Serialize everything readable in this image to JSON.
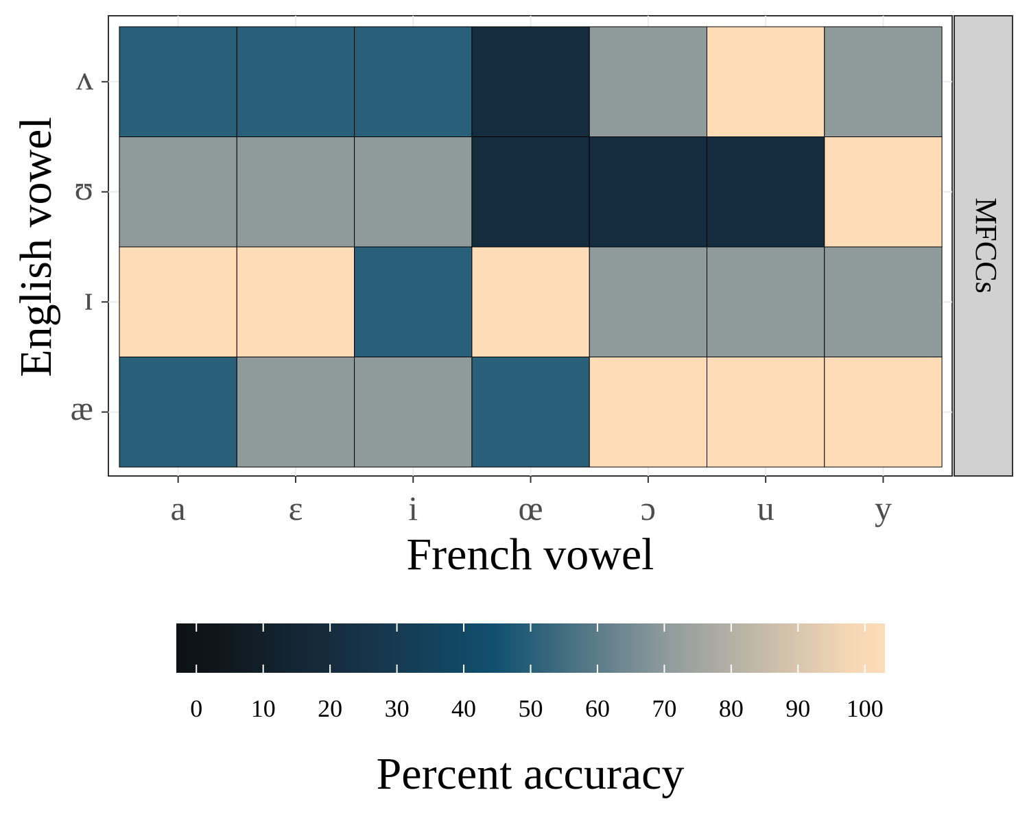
{
  "chart_data": {
    "type": "heatmap",
    "xlabel": "French vowel",
    "ylabel": "English vowel",
    "x_categories": [
      "a",
      "ɛ",
      "i",
      "œ",
      "ɔ",
      "u",
      "y"
    ],
    "y_categories": [
      "ʌ",
      "ʊ",
      "ɪ",
      "æ"
    ],
    "facet_label": "MFCCs",
    "values": [
      [
        50,
        50,
        50,
        20,
        70,
        100,
        70
      ],
      [
        70,
        70,
        70,
        20,
        20,
        20,
        100
      ],
      [
        100,
        100,
        50,
        100,
        70,
        70,
        70
      ],
      [
        50,
        70,
        70,
        50,
        100,
        100,
        100
      ]
    ],
    "grid": true,
    "legend": {
      "title": "Percent accuracy",
      "position": "bottom",
      "ticks": [
        0,
        10,
        20,
        30,
        40,
        50,
        60,
        70,
        80,
        90,
        100
      ],
      "range": [
        -3,
        103
      ],
      "colors": {
        "low": "#0e1215",
        "mid_dark": "#173348",
        "mid": "#10506f",
        "mid_light": "#8f9a9b",
        "high": "#fddcb7"
      }
    }
  }
}
